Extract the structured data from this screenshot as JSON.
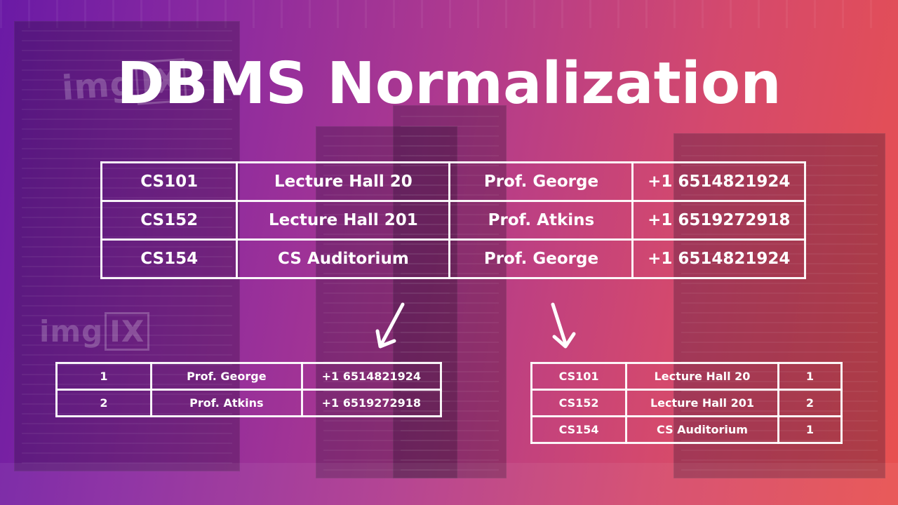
{
  "title": "DBMS Normalization",
  "watermarks": [
    {
      "text": "img",
      "box": "IX"
    },
    {
      "text": "img",
      "box": "IX"
    }
  ],
  "main_table": {
    "rows": [
      [
        "CS101",
        "Lecture Hall 20",
        "Prof. George",
        "+1 6514821924"
      ],
      [
        "CS152",
        "Lecture Hall 201",
        "Prof. Atkins",
        "+1 6519272918"
      ],
      [
        "CS154",
        "CS Auditorium",
        "Prof. George",
        "+1 6514821924"
      ]
    ]
  },
  "left_table": {
    "rows": [
      [
        "1",
        "Prof. George",
        "+1 6514821924"
      ],
      [
        "2",
        "Prof. Atkins",
        "+1 6519272918"
      ]
    ]
  },
  "right_table": {
    "rows": [
      [
        "CS101",
        "Lecture Hall 20",
        "1"
      ],
      [
        "CS152",
        "Lecture Hall 201",
        "2"
      ],
      [
        "CS154",
        "CS Auditorium",
        "1"
      ]
    ]
  },
  "colors": {
    "gradient_start": "#6a1aa5",
    "gradient_end": "#e8504f",
    "line": "#ffffff"
  }
}
